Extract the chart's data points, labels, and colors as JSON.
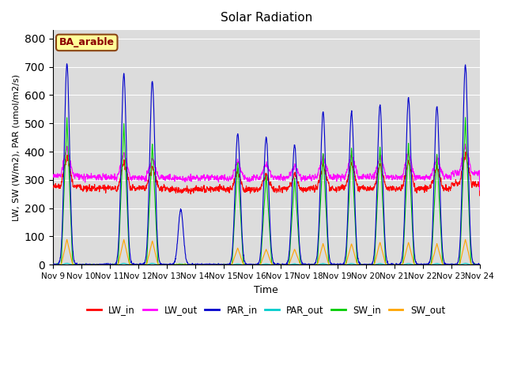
{
  "title": "Solar Radiation",
  "xlabel": "Time",
  "ylabel": "LW, SW (W/m2), PAR (umol/m2/s)",
  "annotation_text": "BA_arable",
  "annotation_facecolor": "#FFFF99",
  "annotation_edgecolor": "#8B4513",
  "annotation_textcolor": "#8B0000",
  "ylim": [
    0,
    830
  ],
  "background_color": "#DCDCDC",
  "series": {
    "LW_in": {
      "color": "#FF0000",
      "lw": 0.8
    },
    "LW_out": {
      "color": "#FF00FF",
      "lw": 0.8
    },
    "PAR_in": {
      "color": "#0000CC",
      "lw": 0.8
    },
    "PAR_out": {
      "color": "#00CCCC",
      "lw": 0.8
    },
    "SW_in": {
      "color": "#00CC00",
      "lw": 0.8
    },
    "SW_out": {
      "color": "#FFA500",
      "lw": 0.8
    }
  },
  "tick_labels": [
    "Nov 9",
    "Nov 10",
    "Nov 11",
    "Nov 12",
    "Nov 13",
    "Nov 14",
    "Nov 15",
    "Nov 16",
    "Nov 17",
    "Nov 18",
    "Nov 19",
    "Nov 20",
    "Nov 21",
    "Nov 22",
    "Nov 23",
    "Nov 24"
  ],
  "par_in_peaks": [
    710,
    0,
    675,
    650,
    195,
    0,
    465,
    450,
    425,
    540,
    540,
    565,
    590,
    560,
    705
  ],
  "sw_in_peaks": [
    520,
    0,
    500,
    430,
    0,
    0,
    365,
    320,
    310,
    400,
    415,
    420,
    430,
    390,
    520
  ],
  "sw_out_peaks": [
    90,
    0,
    90,
    85,
    0,
    0,
    60,
    55,
    55,
    75,
    75,
    80,
    80,
    75,
    90
  ],
  "par_out_peaks": [
    5,
    0,
    5,
    5,
    3,
    0,
    3,
    3,
    3,
    4,
    4,
    4,
    4,
    4,
    5
  ],
  "lw_in_base": [
    278,
    270,
    270,
    270,
    265,
    268,
    265,
    268,
    268,
    270,
    272,
    270,
    270,
    270,
    285
  ],
  "lw_out_base": [
    315,
    310,
    310,
    308,
    305,
    308,
    305,
    308,
    308,
    310,
    312,
    310,
    310,
    310,
    325
  ],
  "lw_in_peak_boost": [
    110,
    20,
    100,
    95,
    30,
    30,
    100,
    90,
    85,
    110,
    110,
    110,
    120,
    100,
    110
  ],
  "lw_out_peak_boost": [
    100,
    15,
    90,
    85,
    25,
    25,
    90,
    80,
    75,
    100,
    100,
    100,
    110,
    90,
    100
  ]
}
